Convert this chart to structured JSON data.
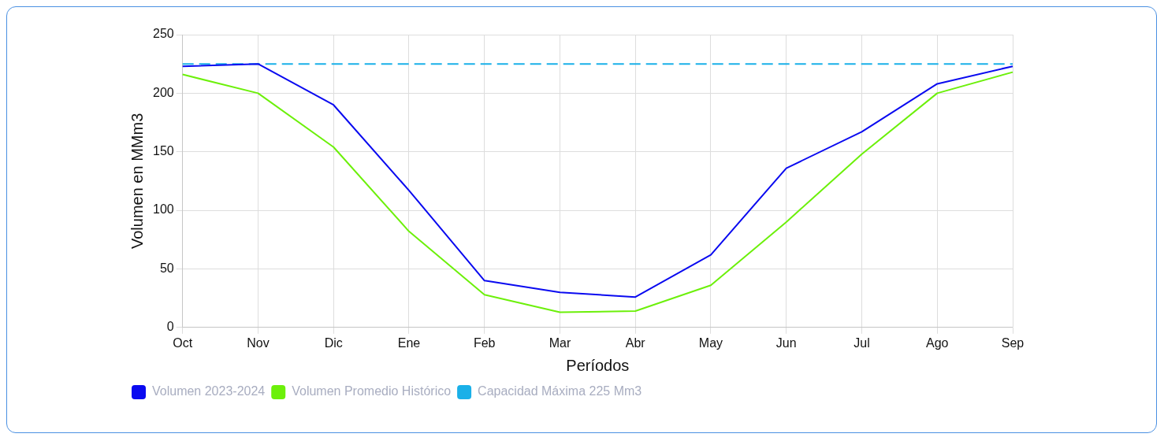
{
  "chart_data": {
    "type": "line",
    "xlabel": "Períodos",
    "ylabel": "Volumen en MMm3",
    "categories": [
      "Oct",
      "Nov",
      "Dic",
      "Ene",
      "Feb",
      "Mar",
      "Abr",
      "May",
      "Jun",
      "Jul",
      "Ago",
      "Sep"
    ],
    "series": [
      {
        "name": "Volumen 2023-2024",
        "color": "#0a0af0",
        "values": [
          223,
          225,
          190,
          117,
          40,
          30,
          26,
          62,
          136,
          167,
          208,
          223
        ]
      },
      {
        "name": "Volumen Promedio Histórico",
        "color": "#6cf00a",
        "values": [
          216,
          200,
          154,
          82,
          28,
          13,
          14,
          36,
          90,
          148,
          200,
          218
        ]
      },
      {
        "name": "Capacidad Máxima 225 Mm3",
        "color": "#1ab0e8",
        "line_style": "dashed",
        "values": [
          225,
          225,
          225,
          225,
          225,
          225,
          225,
          225,
          225,
          225,
          225,
          225
        ]
      }
    ],
    "ylim": [
      0,
      250
    ],
    "yticks": [
      0,
      50,
      100,
      150,
      200,
      250
    ],
    "grid": true,
    "legend": "bottom left",
    "marker": "none"
  }
}
